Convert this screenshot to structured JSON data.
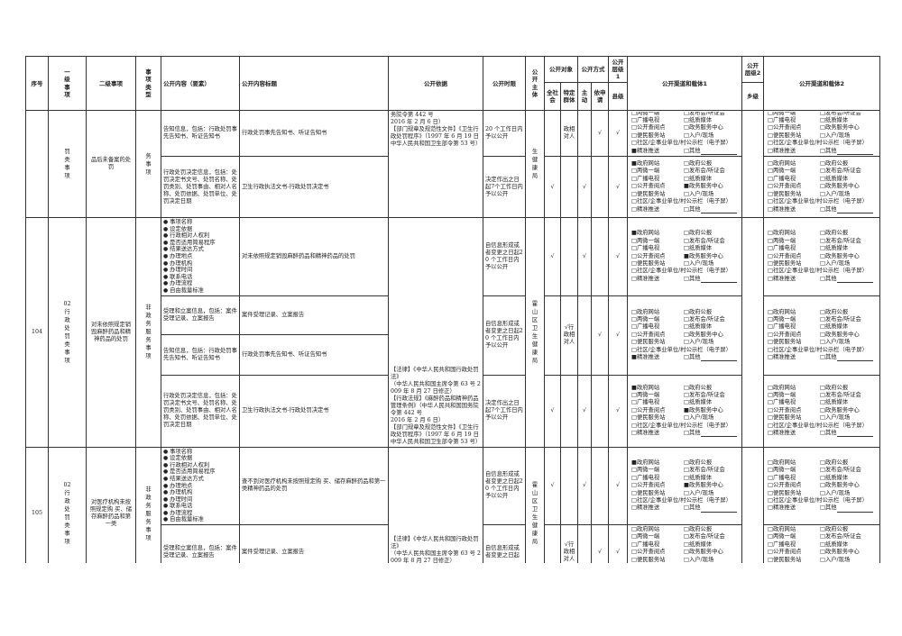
{
  "header": {
    "seq": "序号",
    "level1": "一级事项",
    "level2": "二级事项",
    "type": "事项类型",
    "content": "公开内容（要素）",
    "title": "公开内容标题",
    "basis": "公开依据",
    "time": "公开时限",
    "subject": "公开主体",
    "target": "公开对象",
    "target_all": "全社会",
    "target_specific": "特定群体",
    "method": "公开方式",
    "method_active": "主动",
    "method_request": "依申请",
    "level_1": "公开层级1",
    "county": "县级",
    "channel1": "公开渠道和载体1",
    "level_2": "公开层级2",
    "township": "乡级",
    "channel2": "公开渠道和载体2"
  },
  "channel_options": [
    "政府网站",
    "政府公报",
    "两微一端",
    "发布会/听证会",
    "广播电视",
    "纸质媒体",
    "公开查阅点",
    "政务服务中心",
    "便民服务站",
    "入户/现场",
    "社区/企事业单位/村公示栏（电子屏）",
    "精准推送",
    "其他"
  ],
  "check_mark": "√",
  "items": [
    {
      "seq": "",
      "level1": "罚类事项",
      "level2": "品后未备案的处罚",
      "type": "务事项",
      "subject": "生健康局",
      "basis": "务院令第 442 号\n2016 年 2 月 6 日）\n【部门规章及规范性文件】《卫生行政处罚程序》（1997 年 6 月 19 日中华人民共和国卫生部令第 53 号）",
      "township": "",
      "contents": [
        {
          "content": "告知信息，包括：行政处罚事先告知书、听证告知书",
          "title": "行政处罚事先告知书、听证告知书"
        },
        {
          "content": "行政处罚决定信息，包括：处罚决定书文号、处罚名称、处罚类别、处罚事由、相对人名称、处罚依据、处罚单位、处罚决定日期",
          "title": "卫生行政执法文书-行政处罚决定书"
        }
      ],
      "groups": [
        {
          "rows": 1,
          "time": "20 个工作日内予以公开",
          "all": "",
          "specific": "政相对人",
          "active": "",
          "request": "√",
          "county": "√",
          "channel1_checked": [
            "精准推送"
          ],
          "channel2_checked": []
        },
        {
          "rows": 1,
          "time": "决定作出之日起7个工作日内予以公开",
          "all": "√",
          "specific": "",
          "active": "√",
          "request": "",
          "county": "√",
          "channel1_checked": [
            "政府网站",
            "政务服务中心"
          ],
          "channel2_checked": []
        }
      ]
    },
    {
      "seq": "104",
      "level1": "02行政处罚类事项",
      "level2": "对未依照规定销毁麻醉药品和精神药品的处罚",
      "type": "非政务服务事项",
      "subject": "霍山区卫生健康局",
      "basis": "【法律】《中华人民共和国行政处罚法》\n（中华人民共和国主席令第 63 号 2009 年 8 月 27 日修正）\n【行政法规】《麻醉药品和精神药品管理条例》（中华人民共和国国务院令第 442 号\n2016 年 2 月 6 日）\n【部门规章及规范性文件】《卫生行政处罚程序》（1997 年 6 月 19 日中华人民共和国卫生部令第 53 号）",
      "township": "",
      "contents": [
        {
          "bullets": [
            "事项名称",
            "设定依据",
            "行政相对人权利",
            "是否适用简易程序",
            "结果送达方式",
            "办理地点",
            "办理机构",
            "办理时间",
            "联系电话",
            "办理流程",
            "自由裁量标准"
          ],
          "title": "对未依照规定销毁麻醉药品和精神药品的处罚"
        },
        {
          "content": "受理和立案信息，包括：案件受理记录、立案报告",
          "title": "案件受理记录、立案报告"
        },
        {
          "content": "告知信息，包括：行政处罚事先告知书、听证告知书",
          "title": "行政处罚事先告知书、听证告知书"
        },
        {
          "content": "行政处罚决定信息，包括：处罚决定书文号、处罚名称、处罚类别、处罚事由、相对人名称、处罚依据、处罚单位、处罚决定日期",
          "title": "卫生行政执法文书-行政处罚决定书"
        }
      ],
      "groups": [
        {
          "rows": 1,
          "time": "自信息形成或者变更之日起20 个工作日内予以公开",
          "all": "√",
          "specific": "",
          "active": "√",
          "request": "",
          "county": "√",
          "channel1_checked": [
            "政府网站",
            "政务服务中心"
          ],
          "channel2_checked": []
        },
        {
          "rows": 2,
          "time": "自信息形成或者变更之日起20 个工作日内予以公开",
          "all": "",
          "specific": "√行政相对人",
          "active": "",
          "request": "√",
          "county": "√",
          "channel1_checked": [
            "精准推送"
          ],
          "channel2_checked": []
        },
        {
          "rows": 1,
          "time": "决定作出之日起7个工作日内予以公开",
          "all": "√",
          "specific": "",
          "active": "√",
          "request": "",
          "county": "√",
          "channel1_checked": [
            "政府网站",
            "政务服务中心"
          ],
          "channel2_checked": []
        }
      ]
    },
    {
      "seq": "105",
      "level1": "02行政处罚类事项",
      "level2": "对医疗机构未按照规定购 买、储存麻醉药品和第一类",
      "type": "非政务服务事项",
      "subject": "霍山区卫生健康局",
      "basis": "【法律】《中华人民共和国行政处罚法》\n（中华人民共和国主席令第 63 号 2009 年 8 月 27 日修正）\n【行政法规】《麻醉药品和精神药品管理条例》（中华人民共和国国",
      "township": "",
      "contents": [
        {
          "bullets": [
            "事项名称",
            "设定依据",
            "行政相对人权利",
            "是否适用简易程序",
            "结果送达方式",
            "办理地点",
            "办理机构",
            "办理时间",
            "联系电话",
            "办理流程",
            "自由裁量标准"
          ],
          "title": "查不到对医疗机构未按照规定购 买、储存麻醉药品和第一类精神药品的处罚"
        },
        {
          "content": "受理和立案信息，包括：案件受理记录、立案报告",
          "title": "案件受理记录、立案报告"
        }
      ],
      "groups": [
        {
          "rows": 1,
          "time": "自信息形成或者变更之日起20 个工作日内予以公开",
          "all": "√",
          "specific": "",
          "active": "√",
          "request": "",
          "county": "√",
          "channel1_checked": [
            "政府网站",
            "政务服务中心"
          ],
          "channel2_checked": []
        },
        {
          "rows": 1,
          "time": "自信息形成或者变更之日起",
          "all": "",
          "specific": "√行政相对人",
          "active": "",
          "request": "√",
          "county": "√",
          "channel1_checked": [],
          "channel2_checked": []
        }
      ]
    }
  ]
}
